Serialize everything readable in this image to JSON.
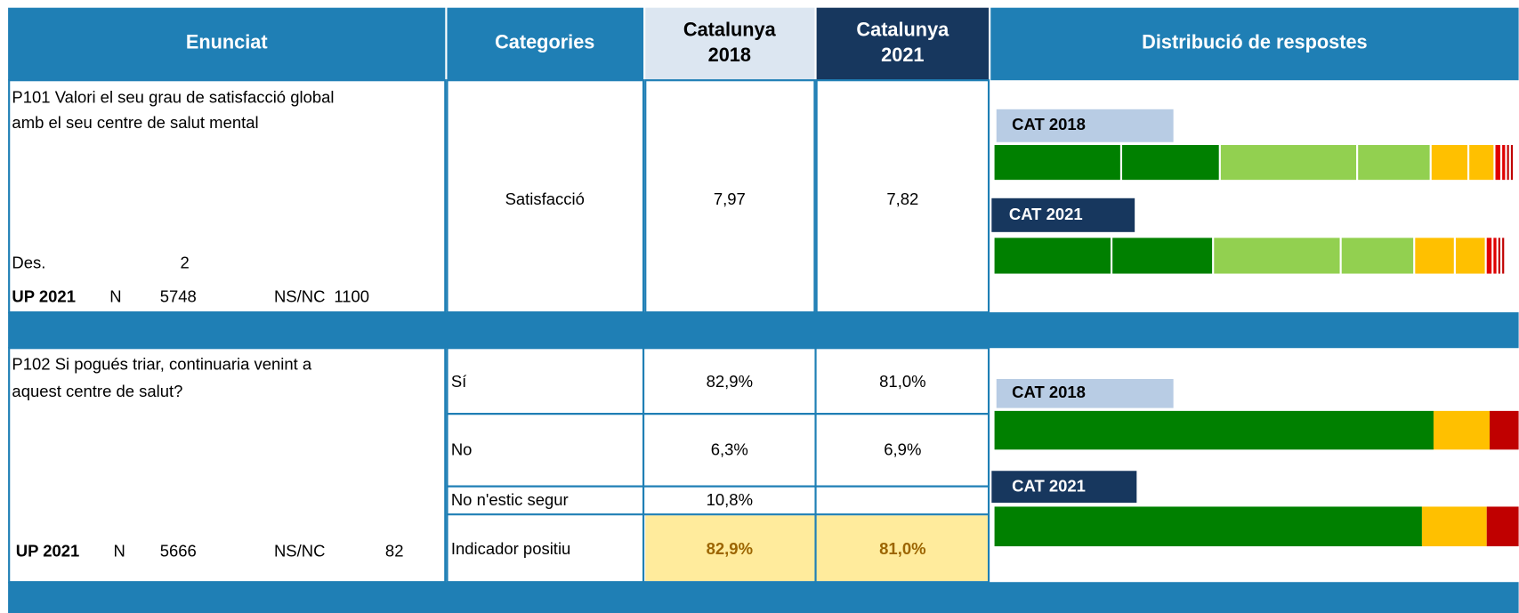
{
  "header": {
    "columns": [
      {
        "lines": [
          "Enunciat"
        ]
      },
      {
        "lines": [
          "Categories"
        ]
      },
      {
        "lines": [
          "Catalunya",
          "2018"
        ]
      },
      {
        "lines": [
          "Catalunya",
          "2021"
        ]
      },
      {
        "lines": [
          "Distribució de respostes"
        ]
      }
    ]
  },
  "questions": [
    {
      "text_lines": [
        "P101 Valori el seu grau de satisfacció global",
        "amb el seu centre de salut mental"
      ],
      "des": {
        "label": "Des.",
        "value": 2
      },
      "up": {
        "label": "UP 2021",
        "n_label": "N",
        "n": 5748,
        "nsnc_label": "NS/NC",
        "nsnc": 1100
      },
      "rows": [
        {
          "category": "Satisfacció",
          "cat2018": "7,97",
          "cat2021": "7,82"
        }
      ],
      "distribution": {
        "legend_2018": "CAT 2018",
        "legend_2021": "CAT 2021"
      }
    },
    {
      "text_lines": [
        "P102 Si pogués triar, continuaria venint a",
        "aquest centre de salut?"
      ],
      "up": {
        "label": "UP 2021",
        "n_label": "N",
        "n": 5666,
        "nsnc_label": "NS/NC",
        "nsnc": 82
      },
      "rows": [
        {
          "category": "Sí",
          "cat2018": "82,9%",
          "cat2021": "81,0%"
        },
        {
          "category": "No",
          "cat2018": "6,3%",
          "cat2021": "6,9%"
        },
        {
          "category": "No n'estic segur",
          "cat2018": "10,8%",
          "cat2021": null
        },
        {
          "category": "Indicador positiu",
          "cat2018": "82,9%",
          "cat2021": "81,0%"
        }
      ],
      "distribution": {
        "legend_2018": "CAT 2018",
        "legend_2021": "CAT 2021"
      }
    }
  ]
}
